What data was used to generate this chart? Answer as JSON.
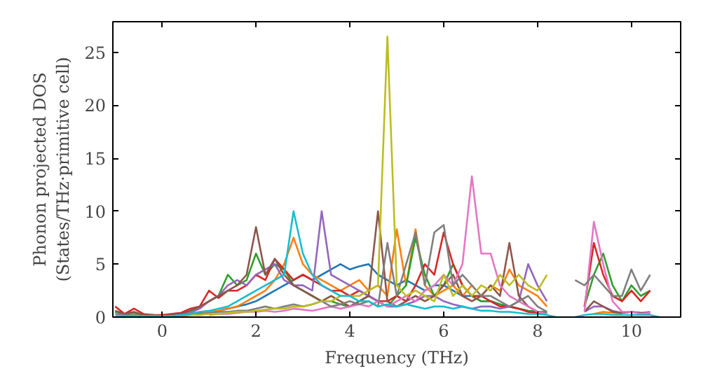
{
  "chart_data": {
    "type": "line",
    "xlabel": "Frequency (THz)",
    "ylabel": "Phonon projected DOS\n(States/THz·primitive cell)",
    "xlim": [
      -1.05,
      11.05
    ],
    "ylim": [
      0,
      27.9
    ],
    "xticks": [
      0,
      2,
      4,
      6,
      8,
      10
    ],
    "yticks": [
      0,
      5,
      10,
      15,
      20,
      25
    ],
    "grid": false,
    "line_style": "solid",
    "marker": "none",
    "x": [
      -1.0,
      -0.8,
      -0.6,
      -0.4,
      -0.2,
      0.0,
      0.2,
      0.4,
      0.6,
      0.8,
      1.0,
      1.2,
      1.4,
      1.6,
      1.8,
      2.0,
      2.2,
      2.4,
      2.6,
      2.8,
      3.0,
      3.2,
      3.4,
      3.6,
      3.8,
      4.0,
      4.2,
      4.4,
      4.6,
      4.8,
      5.0,
      5.2,
      5.4,
      5.6,
      5.8,
      6.0,
      6.2,
      6.4,
      6.6,
      6.8,
      7.0,
      7.2,
      7.4,
      7.6,
      7.8,
      8.0,
      8.2,
      8.4,
      8.6,
      8.8,
      9.0,
      9.2,
      9.4,
      9.6,
      9.8,
      10.0,
      10.2,
      10.4,
      10.6
    ],
    "series": [
      {
        "color": "#1f77b4",
        "values": [
          null,
          null,
          null,
          null,
          null,
          null,
          0.1,
          0.2,
          0.3,
          0.4,
          0.5,
          0.6,
          0.8,
          1,
          1.2,
          1.5,
          2,
          2.5,
          3,
          3.5,
          4,
          3.5,
          4,
          4.5,
          5,
          4.5,
          4.8,
          5,
          4,
          3.5,
          3,
          3.5,
          3,
          2.5,
          3,
          3,
          2.5,
          2,
          2,
          1.5,
          1.5,
          1.2,
          1,
          0.8,
          0.6,
          0.5,
          0.4,
          null,
          null,
          null,
          null,
          null,
          null,
          null,
          null,
          null,
          null,
          null,
          null
        ]
      },
      {
        "color": "#ff7f0e",
        "values": [
          null,
          null,
          null,
          null,
          null,
          null,
          null,
          0.1,
          0.2,
          0.3,
          0.5,
          0.6,
          0.8,
          1,
          1.5,
          2,
          2.5,
          3.5,
          5,
          7.5,
          5,
          4,
          3.5,
          3,
          2.5,
          3,
          3.5,
          2.5,
          3,
          2,
          8.3,
          3,
          8.3,
          3,
          2,
          2.5,
          3,
          2,
          3,
          2,
          3,
          2.5,
          4.5,
          3,
          2.5,
          2,
          1,
          null,
          null,
          null,
          null,
          0.3,
          0.5,
          0.4,
          0.3,
          null,
          null,
          null,
          null
        ]
      },
      {
        "color": "#2ca02c",
        "values": [
          0.5,
          0.3,
          0.4,
          0.2,
          0.2,
          0.1,
          0.2,
          0.3,
          0.6,
          0.9,
          1.5,
          2,
          4,
          3,
          3.5,
          6,
          4,
          5,
          4.5,
          3,
          2.5,
          2,
          1.5,
          1.5,
          1.2,
          1,
          1.5,
          2,
          1.5,
          1,
          2,
          3,
          7.5,
          4,
          2,
          3,
          5,
          3,
          2,
          1.5,
          1.5,
          1.2,
          1,
          0.8,
          0.6,
          0.5,
          0.5,
          null,
          null,
          null,
          1,
          4,
          6,
          3,
          1.5,
          3,
          2,
          2.5,
          null
        ]
      },
      {
        "color": "#d62728",
        "values": [
          1,
          0.3,
          0.8,
          0.3,
          0.2,
          0.2,
          0.3,
          0.4,
          0.8,
          1,
          2.5,
          1.8,
          2.5,
          2.5,
          3,
          4,
          3.5,
          5.5,
          4.5,
          3.5,
          4,
          3.5,
          3,
          2.5,
          2.5,
          2,
          2.5,
          2,
          1.5,
          1.5,
          2,
          1.5,
          3,
          5,
          4,
          8,
          5,
          3,
          2,
          2,
          1.5,
          1,
          1,
          0.8,
          0.5,
          0.4,
          0.3,
          null,
          null,
          null,
          1,
          7,
          4,
          2,
          1.5,
          2.5,
          1.5,
          2.5,
          null
        ]
      },
      {
        "color": "#9467bd",
        "values": [
          null,
          null,
          null,
          null,
          null,
          null,
          null,
          0.2,
          0.4,
          0.8,
          1.5,
          2,
          3,
          3.5,
          3,
          4,
          4.5,
          5,
          3.5,
          3,
          3,
          2.5,
          10,
          4,
          3.5,
          3,
          2.5,
          2,
          1.5,
          1,
          1,
          1.2,
          1.5,
          2,
          2,
          1.5,
          1.2,
          1,
          0.8,
          1,
          1,
          0.8,
          1,
          1.5,
          5,
          3,
          1.5,
          null,
          null,
          null,
          0.5,
          1,
          1,
          0.6,
          0.4,
          0.5,
          0.4,
          0.5,
          null
        ]
      },
      {
        "color": "#8c564b",
        "values": [
          0.6,
          0.3,
          0.5,
          0.2,
          0.2,
          0.1,
          0.2,
          0.3,
          0.6,
          1,
          1.5,
          2,
          2.5,
          3,
          4,
          8.5,
          4,
          5.5,
          4,
          3,
          2.5,
          2,
          1.5,
          2,
          1.5,
          1,
          1.5,
          2,
          10,
          1.5,
          1,
          1.5,
          2,
          1.5,
          2,
          3,
          4,
          2,
          1.5,
          2,
          3,
          2,
          7,
          2,
          1,
          0.5,
          0.3,
          null,
          null,
          null,
          0.5,
          1.5,
          1,
          0.5,
          0.4,
          0.5,
          0.4,
          0.3,
          null
        ]
      },
      {
        "color": "#e377c2",
        "values": [
          null,
          null,
          null,
          null,
          null,
          null,
          null,
          null,
          null,
          null,
          0.2,
          0.3,
          0.3,
          0.4,
          0.5,
          0.5,
          0.6,
          0.5,
          0.6,
          0.8,
          0.7,
          0.6,
          0.8,
          1,
          0.8,
          1,
          1.2,
          1,
          1.5,
          1,
          1.5,
          2,
          1.5,
          2.5,
          3,
          4,
          3,
          5,
          13.3,
          6,
          6,
          3,
          2,
          1.5,
          1,
          0.5,
          0.3,
          null,
          null,
          null,
          0.5,
          9,
          5,
          1.5,
          0.5,
          0.5,
          0.3,
          0.4,
          null
        ]
      },
      {
        "color": "#7f7f7f",
        "values": [
          0.3,
          0.2,
          0.2,
          0.1,
          0.1,
          0.1,
          0.1,
          0.2,
          0.3,
          0.3,
          0.4,
          0.5,
          0.5,
          0.6,
          0.6,
          0.8,
          1,
          0.8,
          1,
          1.2,
          1,
          1.2,
          1.5,
          1,
          1.2,
          1.5,
          1.2,
          1.5,
          1,
          7,
          2,
          5,
          8,
          3,
          8,
          8.7,
          3,
          4,
          3,
          2,
          2,
          1.5,
          1,
          1.5,
          2,
          1,
          0.5,
          null,
          null,
          3.5,
          3,
          4,
          3,
          2,
          2,
          4.5,
          2.5,
          4,
          null
        ]
      },
      {
        "color": "#bcbd22",
        "values": [
          null,
          null,
          null,
          null,
          null,
          null,
          null,
          null,
          0.2,
          0.2,
          0.3,
          0.3,
          0.4,
          0.5,
          0.5,
          0.6,
          0.7,
          0.8,
          0.8,
          1,
          1,
          1.2,
          1.5,
          1.5,
          2,
          2,
          2,
          2.5,
          3,
          26.5,
          3,
          2,
          2.5,
          2,
          1.5,
          4,
          2,
          3,
          2,
          3,
          2.5,
          4,
          3,
          4,
          3,
          2.5,
          4,
          null,
          null,
          null,
          null,
          null,
          null,
          null,
          null,
          null,
          null,
          null,
          null
        ]
      },
      {
        "color": "#17becf",
        "values": [
          0.1,
          0.1,
          0.1,
          0.1,
          0.1,
          0.1,
          0.1,
          0.2,
          0.3,
          0.5,
          0.6,
          0.8,
          1,
          1.5,
          2,
          2.5,
          3,
          3.5,
          4,
          10,
          6,
          4,
          3,
          2.5,
          2,
          2,
          1.5,
          1.5,
          1,
          1.2,
          1,
          1.2,
          1,
          0.8,
          1,
          1,
          0.8,
          1,
          0.8,
          0.6,
          0.6,
          0.5,
          0.5,
          0.4,
          0.3,
          0.3,
          0.2,
          0,
          null,
          0,
          0.2,
          0.3,
          0.3,
          0.2,
          0.2,
          0.2,
          0.2,
          0.2,
          0
        ]
      }
    ]
  }
}
